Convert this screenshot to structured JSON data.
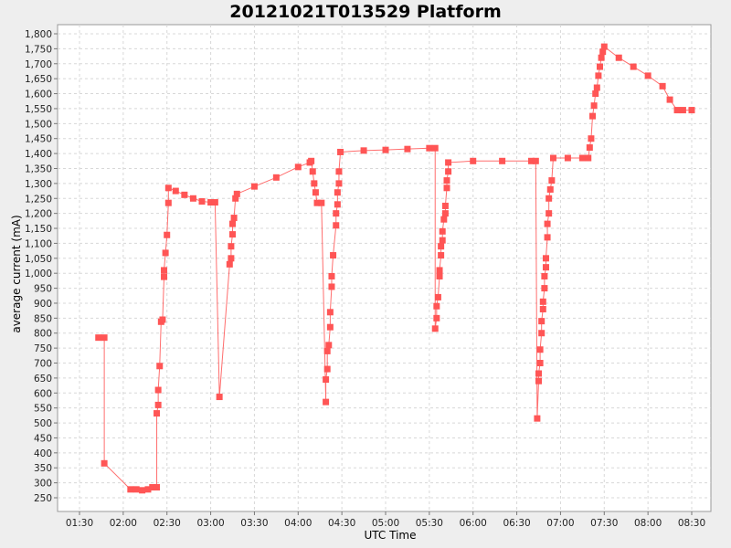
{
  "chart_data": {
    "type": "line",
    "title": "20121021T013529 Platform",
    "xlabel": "UTC Time",
    "ylabel": "average current (mA)",
    "x_ticks": [
      "01:30",
      "02:00",
      "02:30",
      "03:00",
      "03:30",
      "04:00",
      "04:30",
      "05:00",
      "05:30",
      "06:00",
      "06:30",
      "07:00",
      "07:30",
      "08:00",
      "08:30"
    ],
    "y_ticks": [
      250,
      300,
      350,
      400,
      450,
      500,
      550,
      600,
      650,
      700,
      750,
      800,
      850,
      900,
      950,
      1000,
      1050,
      1100,
      1150,
      1200,
      1250,
      1300,
      1350,
      1400,
      1450,
      1500,
      1550,
      1600,
      1650,
      1700,
      1750,
      1800
    ],
    "y_tick_labels": [
      "250",
      "300",
      "350",
      "400",
      "450",
      "500",
      "550",
      "600",
      "650",
      "700",
      "750",
      "800",
      "850",
      "900",
      "950",
      "1,000",
      "1,050",
      "1,100",
      "1,150",
      "1,200",
      "1,250",
      "1,300",
      "1,350",
      "1,400",
      "1,450",
      "1,500",
      "1,550",
      "1,600",
      "1,650",
      "1,700",
      "1,750",
      "1,800"
    ],
    "xlim": [
      "01:15",
      "08:45"
    ],
    "ylim": [
      220,
      1830
    ],
    "grid": true,
    "legend": null,
    "series": [
      {
        "name": "average current",
        "color": "#ff5555",
        "marker": "square",
        "points": [
          [
            "01:43",
            785
          ],
          [
            "01:47",
            785
          ],
          [
            "01:47",
            365
          ],
          [
            "02:05",
            278
          ],
          [
            "02:09",
            278
          ],
          [
            "02:13",
            275
          ],
          [
            "02:17",
            278
          ],
          [
            "02:20",
            285
          ],
          [
            "02:23",
            285
          ],
          [
            "02:23",
            532
          ],
          [
            "02:24",
            560
          ],
          [
            "02:24",
            610
          ],
          [
            "02:25",
            690
          ],
          [
            "02:26",
            838
          ],
          [
            "02:27",
            845
          ],
          [
            "02:28",
            988
          ],
          [
            "02:28",
            1010
          ],
          [
            "02:29",
            1068
          ],
          [
            "02:30",
            1128
          ],
          [
            "02:31",
            1235
          ],
          [
            "02:31",
            1285
          ],
          [
            "02:36",
            1275
          ],
          [
            "02:42",
            1262
          ],
          [
            "02:48",
            1250
          ],
          [
            "02:54",
            1240
          ],
          [
            "03:00",
            1237
          ],
          [
            "03:03",
            1237
          ],
          [
            "03:06",
            587
          ],
          [
            "03:13",
            1030
          ],
          [
            "03:14",
            1050
          ],
          [
            "03:14",
            1090
          ],
          [
            "03:15",
            1130
          ],
          [
            "03:15",
            1165
          ],
          [
            "03:16",
            1185
          ],
          [
            "03:17",
            1250
          ],
          [
            "03:18",
            1265
          ],
          [
            "03:30",
            1290
          ],
          [
            "03:45",
            1320
          ],
          [
            "04:00",
            1355
          ],
          [
            "04:08",
            1370
          ],
          [
            "04:09",
            1375
          ],
          [
            "04:10",
            1340
          ],
          [
            "04:11",
            1300
          ],
          [
            "04:12",
            1270
          ],
          [
            "04:13",
            1235
          ],
          [
            "04:16",
            1235
          ],
          [
            "04:19",
            570
          ],
          [
            "04:19",
            645
          ],
          [
            "04:20",
            680
          ],
          [
            "04:20",
            740
          ],
          [
            "04:21",
            760
          ],
          [
            "04:22",
            820
          ],
          [
            "04:22",
            870
          ],
          [
            "04:23",
            955
          ],
          [
            "04:23",
            990
          ],
          [
            "04:24",
            1060
          ],
          [
            "04:26",
            1160
          ],
          [
            "04:26",
            1200
          ],
          [
            "04:27",
            1230
          ],
          [
            "04:27",
            1270
          ],
          [
            "04:28",
            1300
          ],
          [
            "04:28",
            1340
          ],
          [
            "04:29",
            1405
          ],
          [
            "04:45",
            1410
          ],
          [
            "05:00",
            1412
          ],
          [
            "05:15",
            1415
          ],
          [
            "05:30",
            1418
          ],
          [
            "05:34",
            1418
          ],
          [
            "05:34",
            815
          ],
          [
            "05:35",
            850
          ],
          [
            "05:35",
            890
          ],
          [
            "05:36",
            920
          ],
          [
            "05:37",
            990
          ],
          [
            "05:37",
            1010
          ],
          [
            "05:38",
            1060
          ],
          [
            "05:38",
            1090
          ],
          [
            "05:39",
            1110
          ],
          [
            "05:39",
            1140
          ],
          [
            "05:40",
            1180
          ],
          [
            "05:41",
            1200
          ],
          [
            "05:41",
            1225
          ],
          [
            "05:42",
            1285
          ],
          [
            "05:42",
            1310
          ],
          [
            "05:43",
            1340
          ],
          [
            "05:43",
            1370
          ],
          [
            "06:00",
            1375
          ],
          [
            "06:20",
            1375
          ],
          [
            "06:40",
            1375
          ],
          [
            "06:43",
            1375
          ],
          [
            "06:44",
            515
          ],
          [
            "06:45",
            640
          ],
          [
            "06:45",
            665
          ],
          [
            "06:46",
            700
          ],
          [
            "06:46",
            745
          ],
          [
            "06:47",
            800
          ],
          [
            "06:47",
            840
          ],
          [
            "06:48",
            880
          ],
          [
            "06:48",
            905
          ],
          [
            "06:49",
            950
          ],
          [
            "06:49",
            990
          ],
          [
            "06:50",
            1020
          ],
          [
            "06:50",
            1050
          ],
          [
            "06:51",
            1120
          ],
          [
            "06:51",
            1165
          ],
          [
            "06:52",
            1200
          ],
          [
            "06:52",
            1250
          ],
          [
            "06:53",
            1280
          ],
          [
            "06:54",
            1310
          ],
          [
            "06:55",
            1385
          ],
          [
            "07:05",
            1385
          ],
          [
            "07:15",
            1385
          ],
          [
            "07:19",
            1385
          ],
          [
            "07:20",
            1420
          ],
          [
            "07:21",
            1450
          ],
          [
            "07:22",
            1525
          ],
          [
            "07:23",
            1560
          ],
          [
            "07:24",
            1600
          ],
          [
            "07:25",
            1620
          ],
          [
            "07:26",
            1660
          ],
          [
            "07:27",
            1690
          ],
          [
            "07:28",
            1720
          ],
          [
            "07:29",
            1740
          ],
          [
            "07:30",
            1757
          ],
          [
            "07:40",
            1720
          ],
          [
            "07:50",
            1690
          ],
          [
            "08:00",
            1660
          ],
          [
            "08:10",
            1625
          ],
          [
            "08:15",
            1580
          ],
          [
            "08:20",
            1545
          ],
          [
            "08:24",
            1545
          ],
          [
            "08:30",
            1545
          ]
        ]
      }
    ]
  }
}
